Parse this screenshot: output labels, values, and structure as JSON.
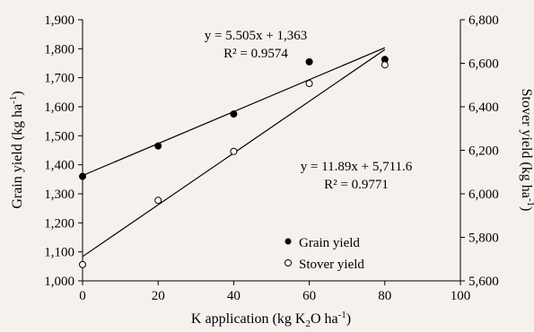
{
  "chart_data": {
    "type": "scatter",
    "x": [
      0,
      20,
      40,
      60,
      80
    ],
    "xlim": [
      0,
      100
    ],
    "xticks": [
      "0",
      "20",
      "40",
      "60",
      "80",
      "100"
    ],
    "xlabel": {
      "pre": "K application (kg K",
      "sub": "2",
      "mid": "O ha",
      "sup": "-1",
      "post": ")"
    },
    "y_left": {
      "label": {
        "pre": "Grain yield (kg ha",
        "sup": "-1",
        "post": ")"
      },
      "lim": [
        1000,
        1900
      ],
      "ticks": [
        "1,000",
        "1,100",
        "1,200",
        "1,300",
        "1,400",
        "1,500",
        "1,600",
        "1,700",
        "1,800",
        "1,900"
      ]
    },
    "y_right": {
      "label": {
        "pre": "Stover yield (kg ha",
        "sup": "-1",
        "post": ")"
      },
      "lim": [
        5600,
        6800
      ],
      "ticks": [
        "5,600",
        "5,800",
        "6,000",
        "6,200",
        "6,400",
        "6,600",
        "6,800"
      ]
    },
    "series": [
      {
        "name": "Grain yield",
        "axis": "left",
        "marker": "filled-circle",
        "values": [
          1360,
          1465,
          1575,
          1755,
          1763
        ],
        "trendline": {
          "slope": 5.505,
          "intercept": 1363,
          "equation": "y = 5.505x + 1,363",
          "r2": "R² = 0.9574"
        }
      },
      {
        "name": "Stover yield",
        "axis": "right",
        "marker": "open-circle",
        "values": [
          5675,
          5970,
          6195,
          6507,
          6593
        ],
        "trendline": {
          "slope": 11.89,
          "intercept": 5711.6,
          "equation": "y = 11.89x + 5,711.6",
          "r2": "R² = 0.9771"
        }
      }
    ],
    "legend_position": "bottom-right",
    "grid": false
  }
}
